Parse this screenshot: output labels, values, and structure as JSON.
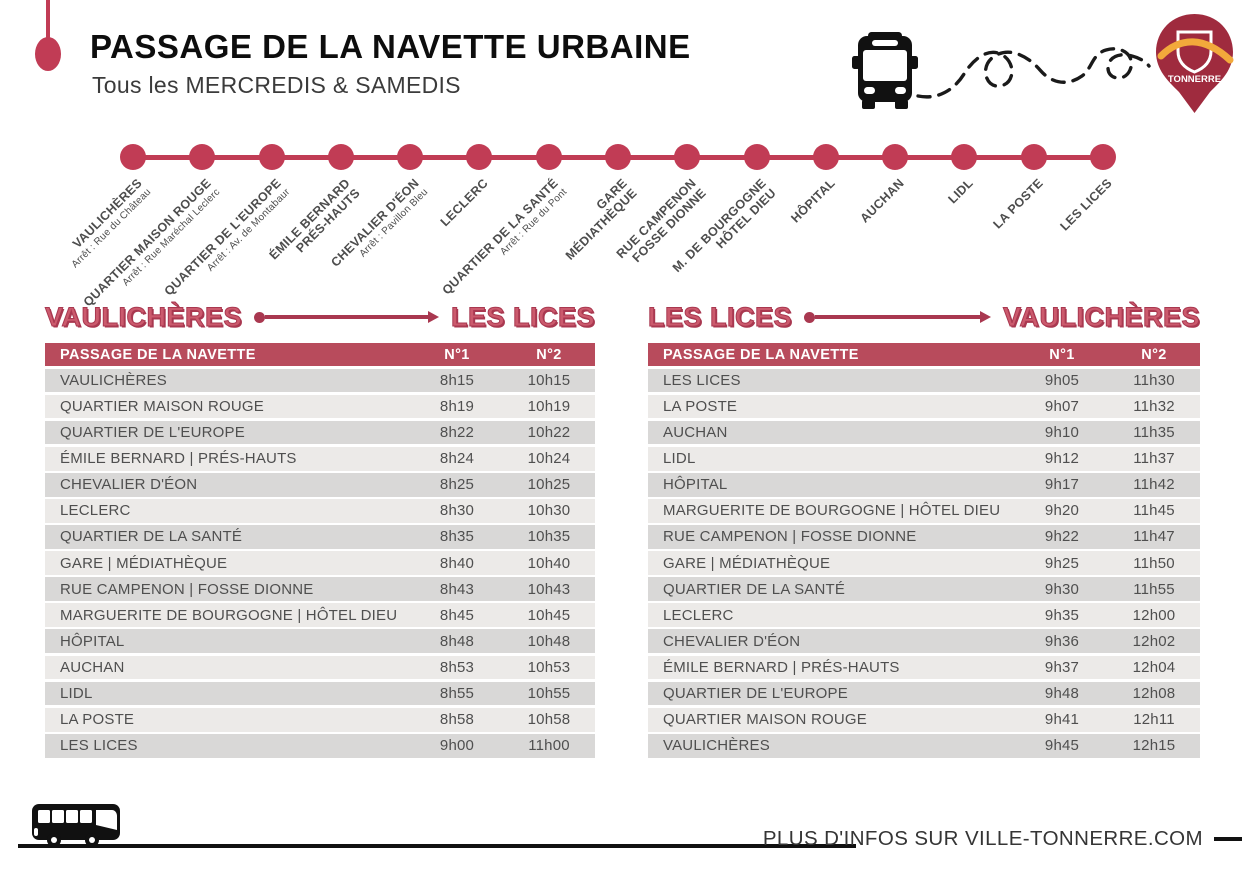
{
  "page": {
    "title": "PASSAGE DE LA NAVETTE URBAINE",
    "subtitle": "Tous les MERCREDIS & SAMEDIS"
  },
  "logo": {
    "text": "TONNERRE"
  },
  "route": {
    "stops": [
      {
        "name": "VAULICHÈRES",
        "sub": "Arrêt : Rue du Château"
      },
      {
        "name": "QUARTIER MAISON ROUGE",
        "sub": "Arrêt : Rue Maréchal Leclerc"
      },
      {
        "name": "QUARTIER DE L'EUROPE",
        "sub": "Arrêt : Av. de Montabaur"
      },
      {
        "name": "ÉMILE BERNARD\nPRÉS-HAUTS",
        "sub": ""
      },
      {
        "name": "CHEVALIER D'ÉON",
        "sub": "Arrêt : Pavillon Bleu"
      },
      {
        "name": "LECLERC",
        "sub": ""
      },
      {
        "name": "QUARTIER DE LA SANTÉ",
        "sub": "Arrêt : Rue du Pont"
      },
      {
        "name": "GARE\nMÉDIATHÈQUE",
        "sub": ""
      },
      {
        "name": "RUE CAMPENON\nFOSSE DIONNE",
        "sub": ""
      },
      {
        "name": "M. DE BOURGOGNE\nHÔTEL DIEU",
        "sub": ""
      },
      {
        "name": "HÔPITAL",
        "sub": ""
      },
      {
        "name": "AUCHAN",
        "sub": ""
      },
      {
        "name": "LIDL",
        "sub": ""
      },
      {
        "name": "LA POSTE",
        "sub": ""
      },
      {
        "name": "LES LICES",
        "sub": ""
      }
    ]
  },
  "tables": [
    {
      "direction_from": "VAULICHÈRES",
      "direction_to": "LES LICES",
      "columns": {
        "stop": "PASSAGE DE LA NAVETTE",
        "n1": "N°1",
        "n2": "N°2"
      },
      "rows": [
        {
          "stop": "VAULICHÈRES",
          "n1": "8h15",
          "n2": "10h15"
        },
        {
          "stop": "QUARTIER MAISON ROUGE",
          "n1": "8h19",
          "n2": "10h19"
        },
        {
          "stop": "QUARTIER DE L'EUROPE",
          "n1": "8h22",
          "n2": "10h22"
        },
        {
          "stop": "ÉMILE BERNARD | PRÉS-HAUTS",
          "n1": "8h24",
          "n2": "10h24"
        },
        {
          "stop": "CHEVALIER D'ÉON",
          "n1": "8h25",
          "n2": "10h25"
        },
        {
          "stop": "LECLERC",
          "n1": "8h30",
          "n2": "10h30"
        },
        {
          "stop": "QUARTIER DE LA SANTÉ",
          "n1": "8h35",
          "n2": "10h35"
        },
        {
          "stop": "GARE | MÉDIATHÈQUE",
          "n1": "8h40",
          "n2": "10h40"
        },
        {
          "stop": "RUE CAMPENON | FOSSE DIONNE",
          "n1": "8h43",
          "n2": "10h43"
        },
        {
          "stop": "MARGUERITE DE BOURGOGNE | HÔTEL DIEU",
          "n1": "8h45",
          "n2": "10h45"
        },
        {
          "stop": "HÔPITAL",
          "n1": "8h48",
          "n2": "10h48"
        },
        {
          "stop": "AUCHAN",
          "n1": "8h53",
          "n2": "10h53"
        },
        {
          "stop": "LIDL",
          "n1": "8h55",
          "n2": "10h55"
        },
        {
          "stop": "LA POSTE",
          "n1": "8h58",
          "n2": "10h58"
        },
        {
          "stop": "LES LICES",
          "n1": "9h00",
          "n2": "11h00"
        }
      ]
    },
    {
      "direction_from": "LES LICES",
      "direction_to": "VAULICHÈRES",
      "columns": {
        "stop": "PASSAGE DE LA NAVETTE",
        "n1": "N°1",
        "n2": "N°2"
      },
      "rows": [
        {
          "stop": "LES LICES",
          "n1": "9h05",
          "n2": "11h30"
        },
        {
          "stop": "LA POSTE",
          "n1": "9h07",
          "n2": "11h32"
        },
        {
          "stop": "AUCHAN",
          "n1": "9h10",
          "n2": "11h35"
        },
        {
          "stop": "LIDL",
          "n1": "9h12",
          "n2": "11h37"
        },
        {
          "stop": "HÔPITAL",
          "n1": "9h17",
          "n2": "11h42"
        },
        {
          "stop": "MARGUERITE DE BOURGOGNE | HÔTEL DIEU",
          "n1": "9h20",
          "n2": "11h45"
        },
        {
          "stop": "RUE CAMPENON | FOSSE DIONNE",
          "n1": "9h22",
          "n2": "11h47"
        },
        {
          "stop": "GARE | MÉDIATHÈQUE",
          "n1": "9h25",
          "n2": "11h50"
        },
        {
          "stop": "QUARTIER DE LA SANTÉ",
          "n1": "9h30",
          "n2": "11h55"
        },
        {
          "stop": "LECLERC",
          "n1": "9h35",
          "n2": "12h00"
        },
        {
          "stop": "CHEVALIER D'ÉON",
          "n1": "9h36",
          "n2": "12h02"
        },
        {
          "stop": "ÉMILE BERNARD | PRÉS-HAUTS",
          "n1": "9h37",
          "n2": "12h04"
        },
        {
          "stop": "QUARTIER DE L'EUROPE",
          "n1": "9h48",
          "n2": "12h08"
        },
        {
          "stop": "QUARTIER MAISON ROUGE",
          "n1": "9h41",
          "n2": "12h11"
        },
        {
          "stop": "VAULICHÈRES",
          "n1": "9h45",
          "n2": "12h15"
        }
      ]
    }
  ],
  "footer": {
    "info": "PLUS D'INFOS SUR VILLE-TONNERRE.COM"
  },
  "colors": {
    "accent": "#c13c55",
    "accent_dark": "#a93850",
    "header_bg": "#b84b5c",
    "row_dark": "#d9d8d7",
    "row_light": "#eceae8",
    "text_gray": "#4d4d4d",
    "pin_red": "#9f2b3e",
    "swoosh_yellow": "#f2a93b"
  }
}
